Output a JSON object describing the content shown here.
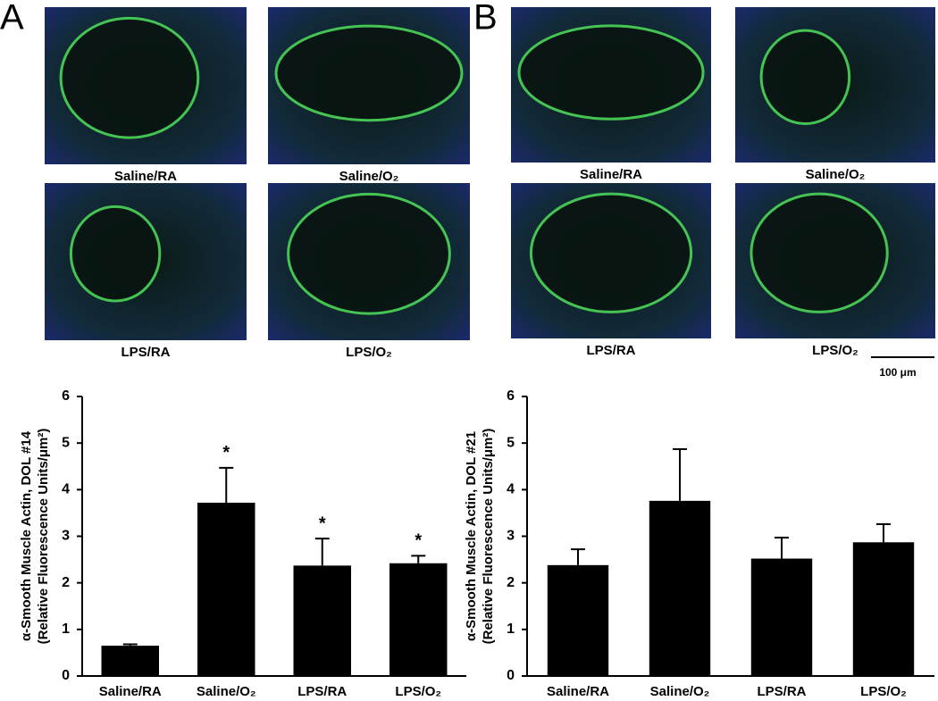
{
  "panels": [
    {
      "label": "A",
      "images": [
        "Saline/RA",
        "Saline/O₂",
        "LPS/RA",
        "LPS/O₂"
      ]
    },
    {
      "label": "B",
      "images": [
        "Saline/RA",
        "Saline/O₂",
        "LPS/RA",
        "LPS/O₂"
      ]
    }
  ],
  "scale_bar": "100 μm",
  "chart_data": [
    {
      "type": "bar",
      "ylabel": [
        "α-Smooth Muscle Actin, DOL #14",
        "(Relative Fluorescence Units/μm²)"
      ],
      "categories": [
        "Saline/RA",
        "Saline/O₂",
        "LPS/RA",
        "LPS/O₂"
      ],
      "values": [
        0.65,
        3.72,
        2.37,
        2.42
      ],
      "errors": [
        0.03,
        0.75,
        0.58,
        0.16
      ],
      "annotations": [
        null,
        "*",
        "*",
        "*"
      ],
      "color": "#000000",
      "ylim": [
        0,
        6
      ],
      "yticks": [
        0,
        1,
        2,
        3,
        4,
        5,
        6
      ]
    },
    {
      "type": "bar",
      "ylabel": [
        "α-Smooth Muscle Actin, DOL #21",
        "(Relative Fluorescence Units/μm²)"
      ],
      "categories": [
        "Saline/RA",
        "Saline/O₂",
        "LPS/RA",
        "LPS/O₂"
      ],
      "values": [
        2.38,
        3.76,
        2.52,
        2.87
      ],
      "errors": [
        0.34,
        1.11,
        0.45,
        0.39
      ],
      "color": "#000000",
      "ylim": [
        0,
        6
      ],
      "yticks": [
        0,
        1,
        2,
        3,
        4,
        5,
        6
      ]
    }
  ]
}
